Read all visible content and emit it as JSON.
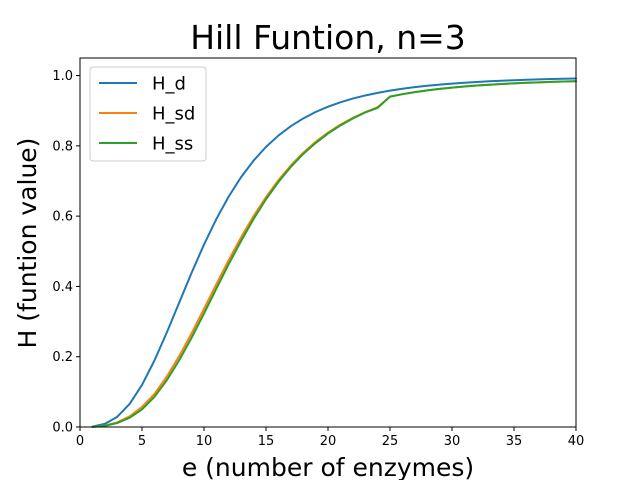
{
  "chart_data": {
    "type": "line",
    "title": "Hill Funtion, n=3",
    "xlabel": "e (number of enzymes)",
    "ylabel": "H (funtion value)",
    "xlim": [
      0,
      40
    ],
    "ylim": [
      0,
      1.05
    ],
    "x_ticks": [
      "0",
      "5",
      "10",
      "15",
      "20",
      "25",
      "30",
      "35",
      "40"
    ],
    "y_ticks": [
      "0.0",
      "0.2",
      "0.4",
      "0.6",
      "0.8",
      "1.0"
    ],
    "grid": false,
    "legend_position": "upper-left",
    "series": [
      {
        "name": "H_d",
        "color": "#1f77b4",
        "x": [
          1,
          2,
          3,
          4,
          5,
          6,
          7,
          8,
          9,
          10,
          11,
          12,
          13,
          14,
          15,
          16,
          17,
          18,
          19,
          20,
          21,
          22,
          23,
          24,
          25,
          26,
          27,
          28,
          29,
          30,
          31,
          32,
          33,
          34,
          35,
          36,
          37,
          38,
          39,
          40
        ],
        "y": [
          0.0011,
          0.0088,
          0.0289,
          0.0656,
          0.1196,
          0.1889,
          0.269,
          0.354,
          0.4389,
          0.5192,
          0.5921,
          0.6563,
          0.7115,
          0.7581,
          0.7971,
          0.8293,
          0.856,
          0.878,
          0.8963,
          0.9114,
          0.924,
          0.9346,
          0.9434,
          0.9508,
          0.9572,
          0.9625,
          0.967,
          0.9709,
          0.9743,
          0.9772,
          0.9797,
          0.9818,
          0.9837,
          0.9853,
          0.9868,
          0.9881,
          0.9892,
          0.9902,
          0.9911,
          0.9918
        ]
      },
      {
        "name": "H_sd",
        "color": "#ff7f0e",
        "x": [
          1,
          2,
          3,
          4,
          5,
          6,
          7,
          8,
          9,
          10,
          11,
          12,
          13,
          14,
          15,
          16,
          17,
          18,
          19,
          20,
          21,
          22,
          23,
          24,
          25,
          26,
          27,
          28,
          29,
          30,
          31,
          32,
          33,
          34,
          35,
          36,
          37,
          38,
          39,
          40
        ],
        "y": [
          0.0005,
          0.0039,
          0.013,
          0.0302,
          0.057,
          0.0936,
          0.1433,
          0.2015,
          0.2667,
          0.3361,
          0.4064,
          0.4752,
          0.5403,
          0.6003,
          0.6544,
          0.7024,
          0.7442,
          0.7804,
          0.8114,
          0.8379,
          0.8604,
          0.8797,
          0.896,
          0.91,
          0.94,
          0.947,
          0.953,
          0.958,
          0.9622,
          0.9658,
          0.969,
          0.9717,
          0.974,
          0.976,
          0.9778,
          0.9794,
          0.9808,
          0.982,
          0.9831,
          0.984
        ]
      },
      {
        "name": "H_ss",
        "color": "#2ca02c",
        "x": [
          1,
          2,
          3,
          4,
          5,
          6,
          7,
          8,
          9,
          10,
          11,
          12,
          13,
          14,
          15,
          16,
          17,
          18,
          19,
          20,
          21,
          22,
          23,
          24,
          25,
          26,
          27,
          28,
          29,
          30,
          31,
          32,
          33,
          34,
          35,
          36,
          37,
          38,
          39,
          40
        ],
        "y": [
          0.0004,
          0.0033,
          0.0112,
          0.0263,
          0.05,
          0.0855,
          0.133,
          0.19,
          0.254,
          0.323,
          0.394,
          0.464,
          0.53,
          0.592,
          0.648,
          0.697,
          0.74,
          0.777,
          0.808,
          0.835,
          0.858,
          0.878,
          0.895,
          0.908,
          0.94,
          0.947,
          0.953,
          0.958,
          0.9622,
          0.9658,
          0.969,
          0.9717,
          0.974,
          0.976,
          0.9778,
          0.9794,
          0.9808,
          0.982,
          0.9831,
          0.984
        ]
      }
    ]
  }
}
